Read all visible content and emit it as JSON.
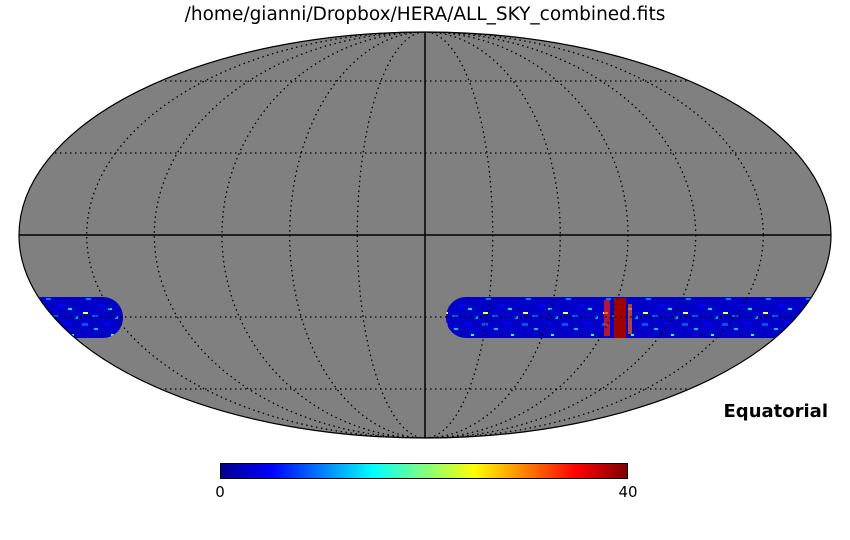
{
  "title": "/home/gianni/Dropbox/HERA/ALL_SKY_combined.fits",
  "coordinate_system": "Equatorial",
  "colorbar": {
    "min_label": "0",
    "max_label": "40",
    "colormap": "jet"
  },
  "colors": {
    "background_fill": "#808080",
    "outline": "#000000",
    "graticule": "#000000"
  },
  "map_projection": "mollweide",
  "data_band": {
    "description_values": {
      "dec_range_deg": [
        -38,
        -23
      ]
    }
  }
}
